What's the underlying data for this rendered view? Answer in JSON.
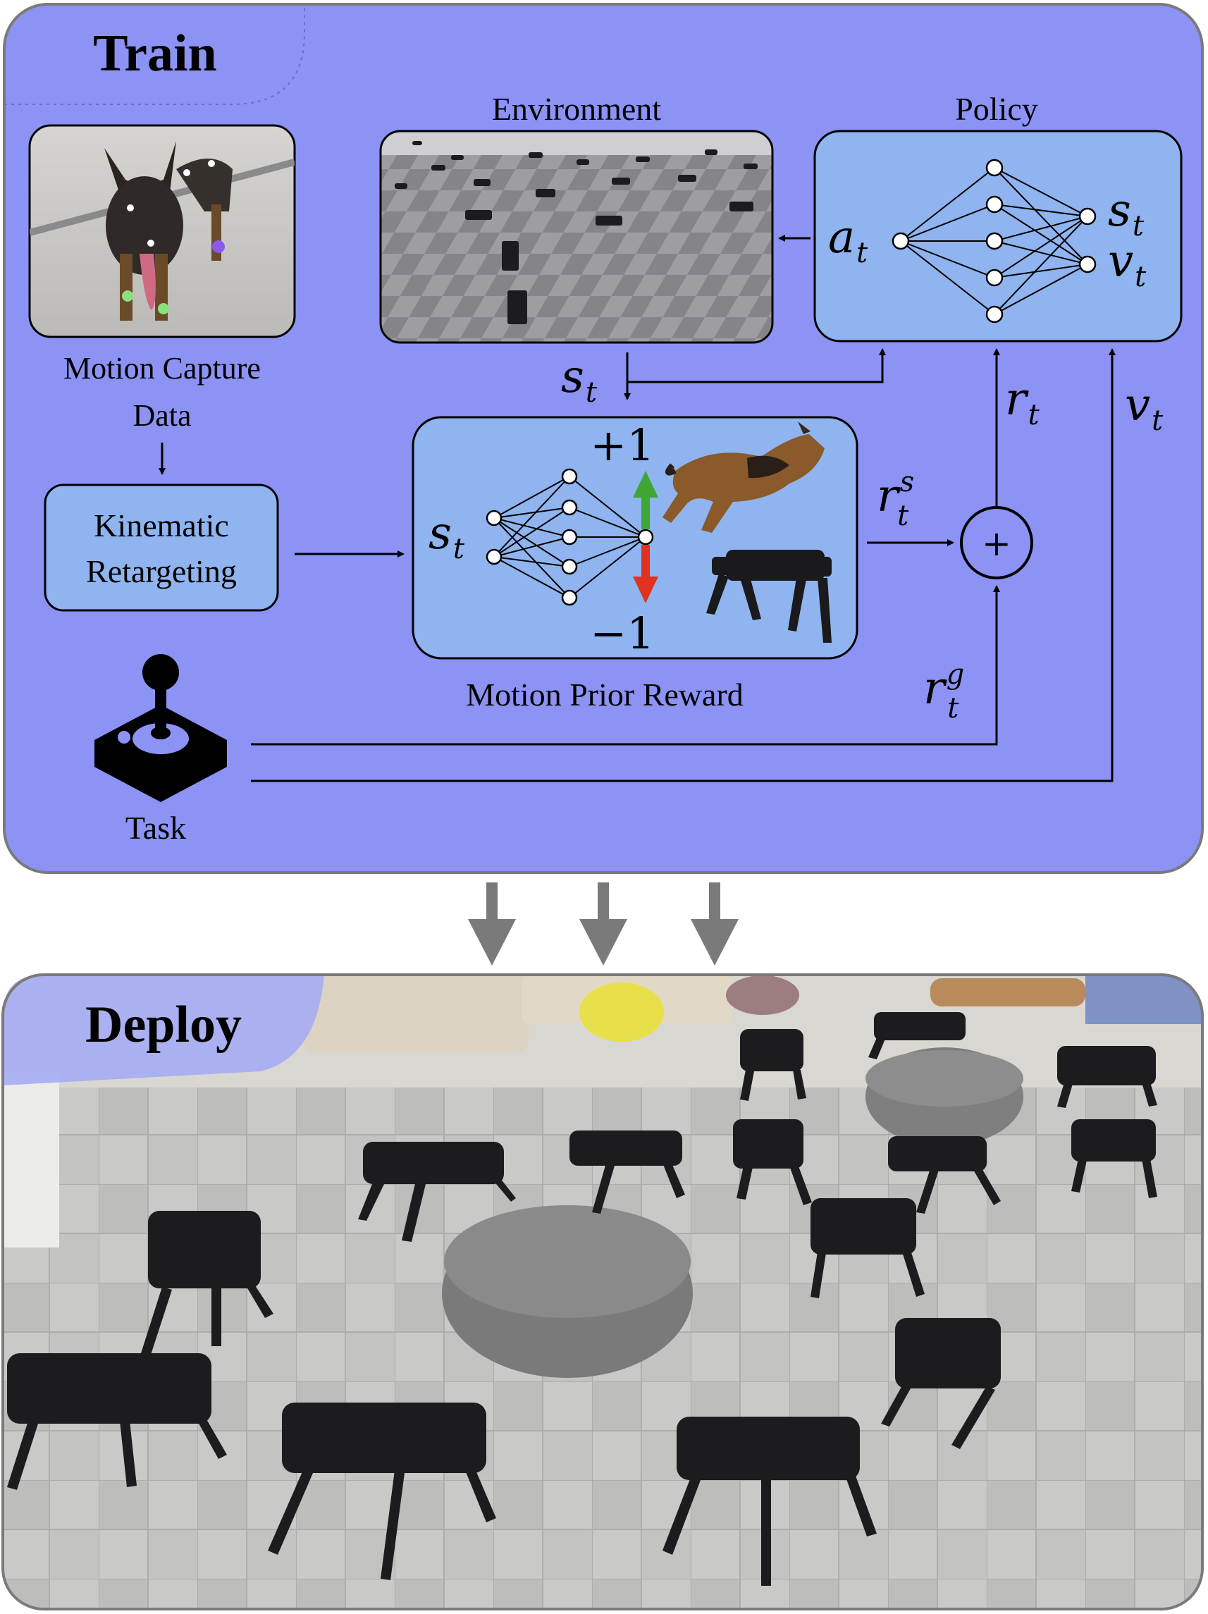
{
  "train": {
    "title": "Train",
    "environment_label": "Environment",
    "policy_label": "Policy",
    "mocap_label_line1": "Motion Capture",
    "mocap_label_line2": "Data",
    "kinematic_line1": "Kinematic",
    "kinematic_line2": "Retargeting",
    "motion_prior_label": "Motion Prior Reward",
    "task_label": "Task",
    "policy_in": "a",
    "policy_out_s": "s",
    "policy_out_v": "v",
    "st_label": "s",
    "rt_label": "r",
    "vt_label": "v",
    "rts_label": "r",
    "rts_sup": "s",
    "rtg_label": "r",
    "rtg_sup": "g",
    "plus_one": "+1",
    "minus_one": "−1",
    "plus_symbol": "+",
    "subscript": "t"
  },
  "deploy": {
    "title": "Deploy"
  },
  "colors": {
    "train_bg": "#8c93f5",
    "box_bg": "#8fb4ef",
    "green_arrow": "#3fa535",
    "red_arrow": "#e0321e",
    "deploy_arrows": "#7a7a7a"
  }
}
